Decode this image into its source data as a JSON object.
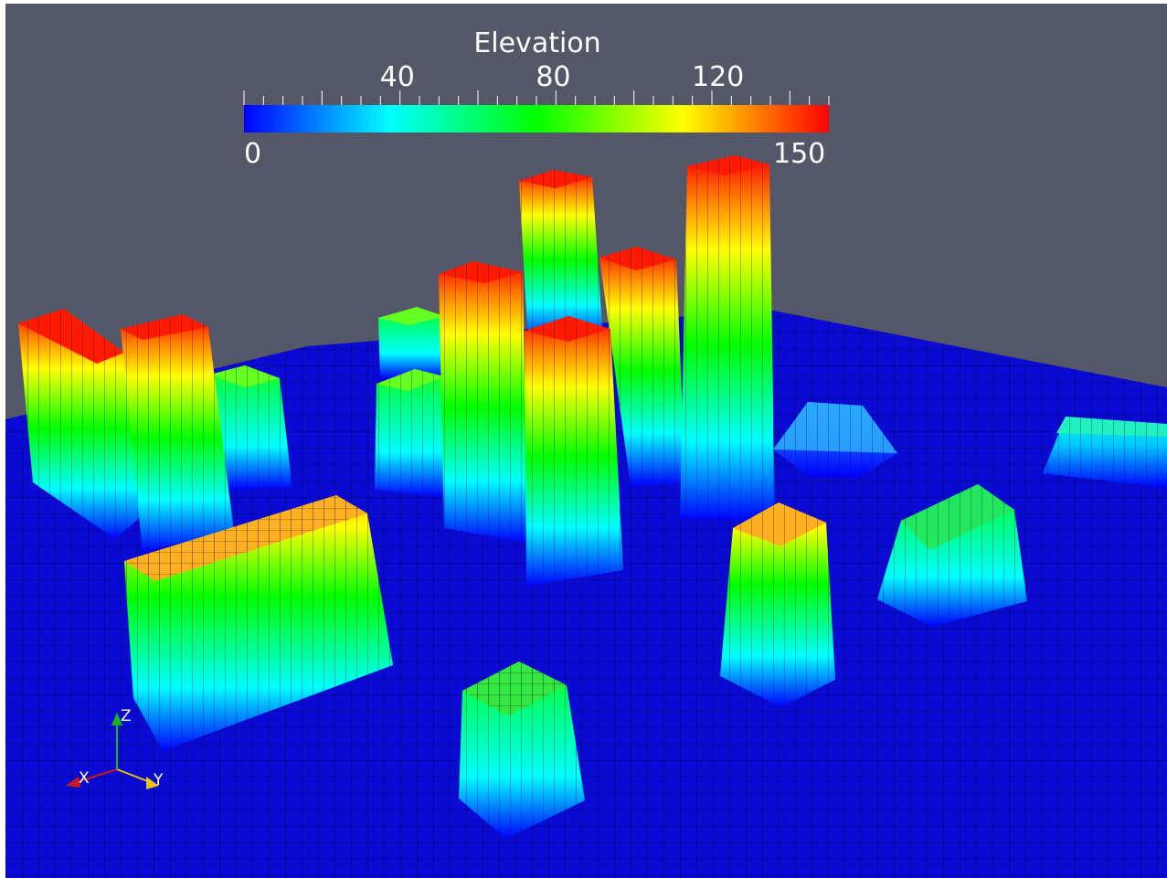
{
  "view": {
    "background": "#535767",
    "scalar_name": "Elevation"
  },
  "colorbar": {
    "title": "Elevation",
    "range": [
      0,
      150
    ],
    "range_labels": [
      "0",
      "150"
    ],
    "tick_labels": [
      "40",
      "80",
      "120"
    ],
    "tick_values": [
      40,
      80,
      120
    ],
    "colormap": [
      "#0000ff",
      "#00ffff",
      "#00ff00",
      "#ffff00",
      "#ff0000"
    ]
  },
  "axes_triad": {
    "x_label": "X",
    "y_label": "Y",
    "z_label": "Z",
    "x_color": "#cc1a1a",
    "y_color": "#e6c21a",
    "z_color": "#1ab51a"
  },
  "surface": {
    "base_color": "#0a0ad2",
    "grid_color": "#08085a"
  },
  "blocks": [
    {
      "id": "far-left-tall",
      "peak_elevation": 150
    },
    {
      "id": "left-tall",
      "peak_elevation": 150
    },
    {
      "id": "left-short",
      "peak_elevation": 80
    },
    {
      "id": "back-center-short",
      "peak_elevation": 70
    },
    {
      "id": "center-short",
      "peak_elevation": 75
    },
    {
      "id": "center-tall-a",
      "peak_elevation": 150
    },
    {
      "id": "center-tall-b",
      "peak_elevation": 150
    },
    {
      "id": "center-tall-c",
      "peak_elevation": 150
    },
    {
      "id": "center-tallest",
      "peak_elevation": 150
    },
    {
      "id": "front-right-center",
      "peak_elevation": 120
    },
    {
      "id": "right-flat",
      "peak_elevation": 45
    },
    {
      "id": "far-right-flat",
      "peak_elevation": 55
    },
    {
      "id": "right-mid",
      "peak_elevation": 75
    },
    {
      "id": "front-wide",
      "peak_elevation": 120
    },
    {
      "id": "front-small",
      "peak_elevation": 85
    }
  ]
}
